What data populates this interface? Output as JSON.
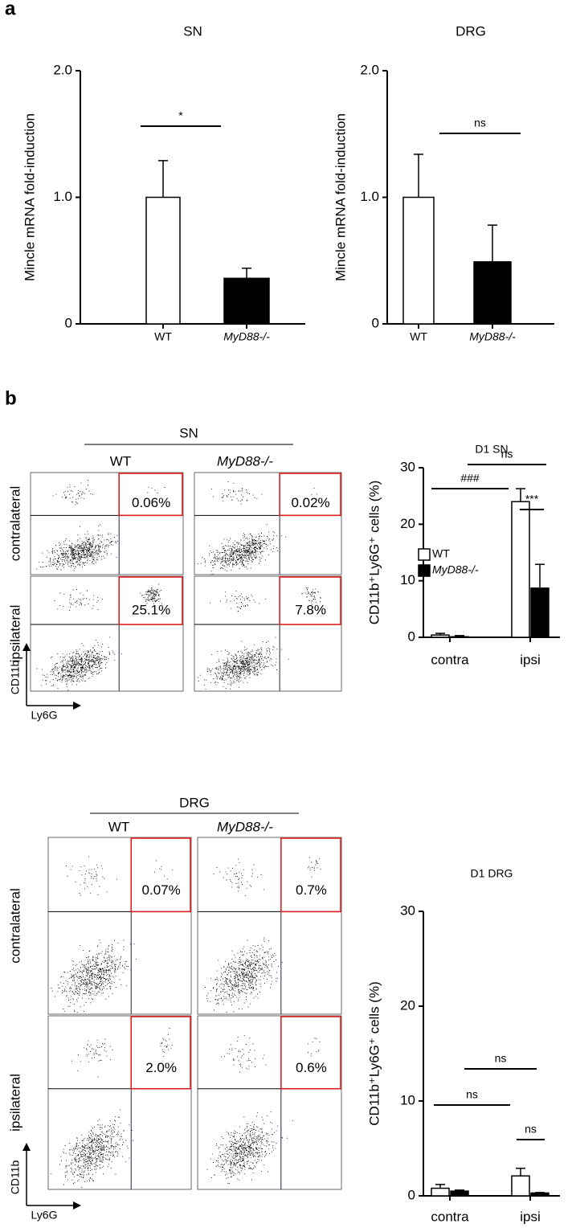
{
  "panel_labels": [
    "a",
    "b"
  ],
  "flow_blocks": [
    {
      "tissue": "SN",
      "columns": [
        "WT",
        "MyD88-/-"
      ],
      "rows": [
        "contralateral",
        "ipsilateral"
      ],
      "gates": [
        [
          "0.06%",
          "0.02%"
        ],
        [
          "25.1%",
          "7.8%"
        ]
      ],
      "axes": [
        "CD11b",
        "Ly6G"
      ]
    },
    {
      "tissue": "DRG",
      "columns": [
        "WT",
        "MyD88-/-"
      ],
      "rows": [
        "contralateral",
        "ipsilateral"
      ],
      "gates": [
        [
          "0.07%",
          "0.7%"
        ],
        [
          "2.0%",
          "0.6%"
        ]
      ],
      "axes": [
        "CD11b",
        "Ly6G"
      ]
    }
  ],
  "chart_data": [
    {
      "type": "bar",
      "title": "SN",
      "y_label": "Mincle mRNA fold-induction",
      "categories": [
        "WT",
        "MyD88-/-"
      ],
      "series": [
        {
          "values": [
            1.0,
            0.36
          ],
          "errors": [
            0.29,
            0.08
          ],
          "colors": [
            "#ffffff",
            "#000000"
          ]
        }
      ],
      "ylim": [
        0,
        2
      ],
      "yticks": [
        0,
        {
          "value": 1,
          "label": "1.0"
        },
        {
          "value": 2,
          "label": "2.0"
        }
      ],
      "annotations": [
        "*"
      ]
    },
    {
      "type": "bar",
      "title": "DRG",
      "y_label": "Mincle mRNA fold-induction",
      "categories": [
        "WT",
        "MyD88-/-"
      ],
      "series": [
        {
          "values": [
            1.0,
            0.49
          ],
          "errors": [
            0.34,
            0.29
          ],
          "colors": [
            "#ffffff",
            "#000000"
          ]
        }
      ],
      "ylim": [
        0,
        2
      ],
      "yticks": [
        0,
        {
          "value": 1,
          "label": "1.0"
        },
        {
          "value": 2,
          "label": "2.0"
        }
      ],
      "annotations": [
        "ns"
      ]
    },
    {
      "type": "grouped_bar",
      "title": "D1 SN",
      "y_label": "CD11b⁺Ly6G⁺ cells (%)",
      "categories": [
        "contra",
        "ipsi"
      ],
      "series": [
        {
          "name": "WT",
          "color": "#ffffff",
          "values": [
            0.4,
            24
          ],
          "errors": [
            0.3,
            2.3
          ]
        },
        {
          "name": "MyD88-/-",
          "color": "#000000",
          "values": [
            0.1,
            8.7
          ],
          "errors": [
            0.2,
            4.2
          ]
        }
      ],
      "ylim": [
        0,
        30
      ],
      "yticks": [
        0,
        10,
        20,
        30
      ],
      "legend": "center-left",
      "annotations": [
        "ns",
        "###",
        "***"
      ]
    },
    {
      "type": "grouped_bar",
      "title": "D1 DRG",
      "y_label": "CD11b⁺Ly6G⁺ cells (%)",
      "categories": [
        "contra",
        "ipsi"
      ],
      "series": [
        {
          "color": "#ffffff",
          "values": [
            0.8,
            2.1
          ],
          "errors": [
            0.4,
            0.8
          ]
        },
        {
          "color": "#000000",
          "values": [
            0.5,
            0.3
          ],
          "errors": [
            0.1,
            0.05
          ]
        }
      ],
      "ylim": [
        0,
        30
      ],
      "yticks": [
        0,
        10,
        20,
        30
      ],
      "annotations": [
        "ns",
        "ns",
        "ns"
      ]
    }
  ]
}
